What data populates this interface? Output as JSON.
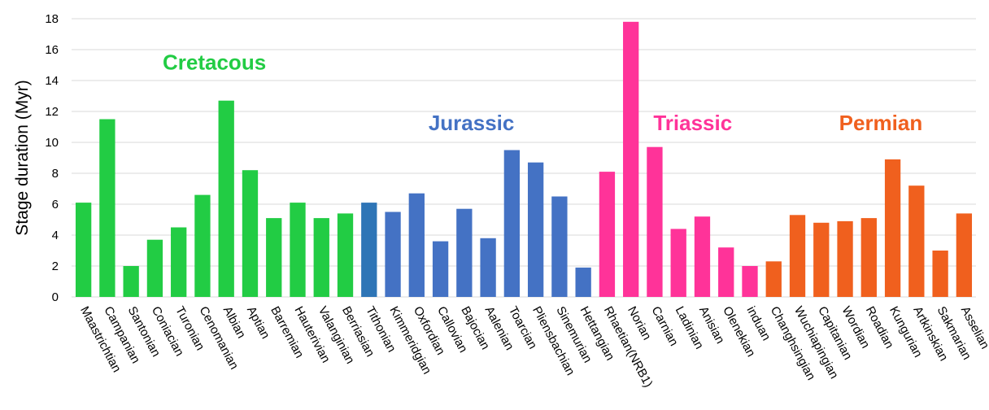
{
  "chart_data": {
    "type": "bar",
    "ylabel": "Stage duration (Myr)",
    "ylim": [
      0,
      18
    ],
    "yticks": [
      0,
      2,
      4,
      6,
      8,
      10,
      12,
      14,
      16,
      18
    ],
    "grid": true,
    "categories": [
      "Maastrichtian",
      "Campanian",
      "Santonian",
      "Coniacian",
      "Turonian",
      "Cenomanian",
      "Albian",
      "Aptian",
      "Barremian",
      "Hauterivian",
      "Valanginian",
      "Berriasian",
      "Tithonian",
      "Kimmeridgian",
      "Oxfordian",
      "Callovian",
      "Bajocian",
      "Aalenian",
      "Toarcian",
      "Pliensbachian",
      "Sinemurian",
      "Hettangian",
      "Rhaetian(NRB1)",
      "Norian",
      "Carnian",
      "Ladinian",
      "Anisian",
      "Olenekian",
      "induan",
      "Changhsingian",
      "Wuchiapingian",
      "Capitanian",
      "Wordian",
      "Roadian",
      "Kungurian",
      "Artkinskian",
      "Sakmarian",
      "Asselian"
    ],
    "values": [
      6.1,
      11.5,
      2.0,
      3.7,
      4.5,
      6.6,
      12.7,
      8.2,
      5.1,
      6.1,
      5.1,
      5.4,
      6.1,
      5.5,
      6.7,
      3.6,
      5.7,
      3.8,
      9.5,
      8.7,
      6.5,
      1.9,
      8.1,
      17.8,
      9.7,
      4.4,
      5.2,
      3.2,
      2.0,
      2.3,
      5.3,
      4.8,
      4.9,
      5.1,
      8.9,
      7.2,
      3.0,
      5.4
    ],
    "bar_colors": [
      "#22cc44",
      "#22cc44",
      "#22cc44",
      "#22cc44",
      "#22cc44",
      "#22cc44",
      "#22cc44",
      "#22cc44",
      "#22cc44",
      "#22cc44",
      "#22cc44",
      "#22cc44",
      "#2e75b6",
      "#4472c4",
      "#4472c4",
      "#4472c4",
      "#4472c4",
      "#4472c4",
      "#4472c4",
      "#4472c4",
      "#4472c4",
      "#4472c4",
      "#ff3399",
      "#ff3399",
      "#ff3399",
      "#ff3399",
      "#ff3399",
      "#ff3399",
      "#ff3399",
      "#f0601e",
      "#f0601e",
      "#f0601e",
      "#f0601e",
      "#f0601e",
      "#f0601e",
      "#f0601e",
      "#f0601e",
      "#f0601e"
    ],
    "annotations": [
      {
        "text": "Cretacous",
        "color": "#22cc44",
        "at_category": 5.5,
        "at_value": 14.7
      },
      {
        "text": "Jurassic",
        "color": "#4472c4",
        "at_category": 16.3,
        "at_value": 10.8
      },
      {
        "text": "Triassic",
        "color": "#ff3399",
        "at_category": 25.6,
        "at_value": 10.8
      },
      {
        "text": "Permian",
        "color": "#f0601e",
        "at_category": 33.5,
        "at_value": 10.8
      }
    ]
  }
}
